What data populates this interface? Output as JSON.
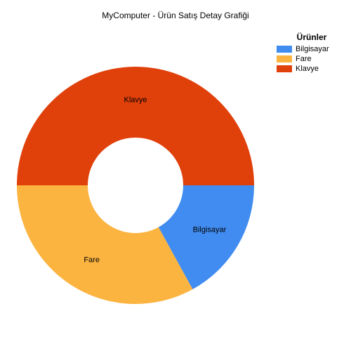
{
  "chart_data": {
    "type": "pie",
    "donut": true,
    "title": "MyComputer - Ürün Satış Detay Grafiği",
    "legend": {
      "title": "Ürünler",
      "position": "top-right"
    },
    "categories": [
      "Bilgisayar",
      "Fare",
      "Klavye"
    ],
    "values": [
      17,
      33,
      50
    ],
    "colors": [
      "#418CF0",
      "#FCB441",
      "#E0400A"
    ]
  }
}
